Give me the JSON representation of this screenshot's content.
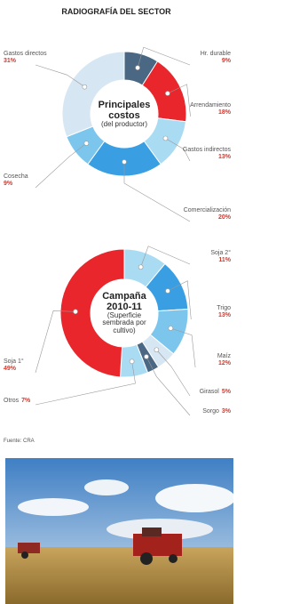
{
  "title": "RADIOGRAFÍA DEL SECTOR",
  "chart_data": [
    {
      "type": "donut",
      "title": "Principales costos",
      "subtitle": "(del productor)",
      "categories": [
        "Hr. durable",
        "Arrendamiento",
        "Gastos indirectos",
        "Comercialización",
        "Cosecha",
        "Gastos directos"
      ],
      "values": [
        9,
        18,
        13,
        20,
        9,
        31
      ],
      "value_labels": [
        "9%",
        "18%",
        "13%",
        "20%",
        "9%",
        "31%"
      ],
      "colors": [
        "#4a6784",
        "#e8262c",
        "#a9dbf3",
        "#3a9fe2",
        "#7cc6ee",
        "#d6e7f3"
      ]
    },
    {
      "type": "donut",
      "title": "Campaña 2010-11",
      "subtitle": "(Superficie sembrada por cultivo)",
      "categories": [
        "Soja 2°",
        "Trigo",
        "Maíz",
        "Girasol",
        "Sorgo",
        "Otros",
        "Soja 1°"
      ],
      "values": [
        11,
        13,
        12,
        5,
        3,
        7,
        49
      ],
      "value_labels": [
        "11%",
        "13%",
        "12%",
        "5%",
        "3%",
        "7%",
        "49%"
      ],
      "colors": [
        "#a9dbf3",
        "#3a9fe2",
        "#7cc6ee",
        "#d6e7f3",
        "#4a6784",
        "#a9dbf3",
        "#e8262c"
      ]
    }
  ],
  "source": "Fuente: CRA"
}
